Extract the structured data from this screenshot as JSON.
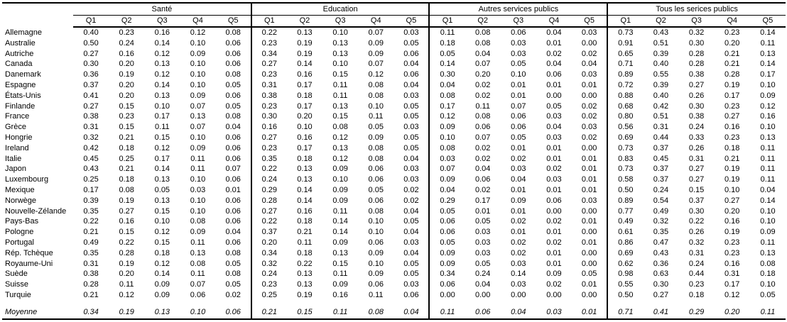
{
  "table": {
    "quarter_headers": [
      "Q1",
      "Q2",
      "Q3",
      "Q4",
      "Q5"
    ],
    "groups": [
      {
        "id": "sante",
        "label": "Santé"
      },
      {
        "id": "education",
        "label": "Education"
      },
      {
        "id": "autres",
        "label": "Autres services publics"
      },
      {
        "id": "tous",
        "label": "Tous les serices publics"
      }
    ],
    "rows": [
      {
        "label": "Allemagne",
        "values": [
          [
            "0.40",
            "0.23",
            "0.16",
            "0.12",
            "0.08"
          ],
          [
            "0.22",
            "0.13",
            "0.10",
            "0.07",
            "0.03"
          ],
          [
            "0.11",
            "0.08",
            "0.06",
            "0.04",
            "0.03"
          ],
          [
            "0.73",
            "0.43",
            "0.32",
            "0.23",
            "0.14"
          ]
        ]
      },
      {
        "label": "Australie",
        "values": [
          [
            "0.50",
            "0.24",
            "0.14",
            "0.10",
            "0.06"
          ],
          [
            "0.23",
            "0.19",
            "0.13",
            "0.09",
            "0.05"
          ],
          [
            "0.18",
            "0.08",
            "0.03",
            "0.01",
            "0.00"
          ],
          [
            "0.91",
            "0.51",
            "0.30",
            "0.20",
            "0.11"
          ]
        ]
      },
      {
        "label": "Autriche",
        "values": [
          [
            "0.27",
            "0.16",
            "0.12",
            "0.09",
            "0.06"
          ],
          [
            "0.34",
            "0.19",
            "0.13",
            "0.09",
            "0.06"
          ],
          [
            "0.05",
            "0.04",
            "0.03",
            "0.02",
            "0.02"
          ],
          [
            "0.65",
            "0.39",
            "0.28",
            "0.21",
            "0.13"
          ]
        ]
      },
      {
        "label": "Canada",
        "values": [
          [
            "0.30",
            "0.20",
            "0.13",
            "0.10",
            "0.06"
          ],
          [
            "0.27",
            "0.14",
            "0.10",
            "0.07",
            "0.04"
          ],
          [
            "0.14",
            "0.07",
            "0.05",
            "0.04",
            "0.04"
          ],
          [
            "0.71",
            "0.40",
            "0.28",
            "0.21",
            "0.14"
          ]
        ]
      },
      {
        "label": "Danemark",
        "values": [
          [
            "0.36",
            "0.19",
            "0.12",
            "0.10",
            "0.08"
          ],
          [
            "0.23",
            "0.16",
            "0.15",
            "0.12",
            "0.06"
          ],
          [
            "0.30",
            "0.20",
            "0.10",
            "0.06",
            "0.03"
          ],
          [
            "0.89",
            "0.55",
            "0.38",
            "0.28",
            "0.17"
          ]
        ]
      },
      {
        "label": "Espagne",
        "values": [
          [
            "0.37",
            "0.20",
            "0.14",
            "0.10",
            "0.05"
          ],
          [
            "0.31",
            "0.17",
            "0.11",
            "0.08",
            "0.04"
          ],
          [
            "0.04",
            "0.02",
            "0.01",
            "0.01",
            "0.01"
          ],
          [
            "0.72",
            "0.39",
            "0.27",
            "0.19",
            "0.10"
          ]
        ]
      },
      {
        "label": "États-Unis",
        "values": [
          [
            "0.41",
            "0.20",
            "0.13",
            "0.09",
            "0.06"
          ],
          [
            "0.38",
            "0.18",
            "0.11",
            "0.08",
            "0.03"
          ],
          [
            "0.08",
            "0.02",
            "0.01",
            "0.00",
            "0.00"
          ],
          [
            "0.88",
            "0.40",
            "0.26",
            "0.17",
            "0.09"
          ]
        ]
      },
      {
        "label": "Finlande",
        "values": [
          [
            "0.27",
            "0.15",
            "0.10",
            "0.07",
            "0.05"
          ],
          [
            "0.23",
            "0.17",
            "0.13",
            "0.10",
            "0.05"
          ],
          [
            "0.17",
            "0.11",
            "0.07",
            "0.05",
            "0.02"
          ],
          [
            "0.68",
            "0.42",
            "0.30",
            "0.23",
            "0.12"
          ]
        ]
      },
      {
        "label": "France",
        "values": [
          [
            "0.38",
            "0.23",
            "0.17",
            "0.13",
            "0.08"
          ],
          [
            "0.30",
            "0.20",
            "0.15",
            "0.11",
            "0.05"
          ],
          [
            "0.12",
            "0.08",
            "0.06",
            "0.03",
            "0.02"
          ],
          [
            "0.80",
            "0.51",
            "0.38",
            "0.27",
            "0.16"
          ]
        ]
      },
      {
        "label": "Grèce",
        "values": [
          [
            "0.31",
            "0.15",
            "0.11",
            "0.07",
            "0.04"
          ],
          [
            "0.16",
            "0.10",
            "0.08",
            "0.05",
            "0.03"
          ],
          [
            "0.09",
            "0.06",
            "0.06",
            "0.04",
            "0.03"
          ],
          [
            "0.56",
            "0.31",
            "0.24",
            "0.16",
            "0.10"
          ]
        ]
      },
      {
        "label": "Hongrie",
        "values": [
          [
            "0.32",
            "0.21",
            "0.15",
            "0.10",
            "0.06"
          ],
          [
            "0.27",
            "0.16",
            "0.12",
            "0.09",
            "0.05"
          ],
          [
            "0.10",
            "0.07",
            "0.05",
            "0.03",
            "0.02"
          ],
          [
            "0.69",
            "0.44",
            "0.33",
            "0.23",
            "0.13"
          ]
        ]
      },
      {
        "label": "Ireland",
        "values": [
          [
            "0.42",
            "0.18",
            "0.12",
            "0.09",
            "0.06"
          ],
          [
            "0.23",
            "0.17",
            "0.13",
            "0.08",
            "0.05"
          ],
          [
            "0.08",
            "0.02",
            "0.01",
            "0.01",
            "0.00"
          ],
          [
            "0.73",
            "0.37",
            "0.26",
            "0.18",
            "0.11"
          ]
        ]
      },
      {
        "label": "Italie",
        "values": [
          [
            "0.45",
            "0.25",
            "0.17",
            "0.11",
            "0.06"
          ],
          [
            "0.35",
            "0.18",
            "0.12",
            "0.08",
            "0.04"
          ],
          [
            "0.03",
            "0.02",
            "0.02",
            "0.01",
            "0.01"
          ],
          [
            "0.83",
            "0.45",
            "0.31",
            "0.21",
            "0.11"
          ]
        ]
      },
      {
        "label": "Japon",
        "values": [
          [
            "0.43",
            "0.21",
            "0.14",
            "0.11",
            "0.07"
          ],
          [
            "0.22",
            "0.13",
            "0.09",
            "0.06",
            "0.03"
          ],
          [
            "0.07",
            "0.04",
            "0.03",
            "0.02",
            "0.01"
          ],
          [
            "0.73",
            "0.37",
            "0.27",
            "0.19",
            "0.11"
          ]
        ]
      },
      {
        "label": "Luxembourg",
        "values": [
          [
            "0.25",
            "0.18",
            "0.13",
            "0.10",
            "0.06"
          ],
          [
            "0.24",
            "0.13",
            "0.10",
            "0.06",
            "0.03"
          ],
          [
            "0.09",
            "0.06",
            "0.04",
            "0.03",
            "0.01"
          ],
          [
            "0.58",
            "0.37",
            "0.27",
            "0.19",
            "0.11"
          ]
        ]
      },
      {
        "label": "Mexique",
        "values": [
          [
            "0.17",
            "0.08",
            "0.05",
            "0.03",
            "0.01"
          ],
          [
            "0.29",
            "0.14",
            "0.09",
            "0.05",
            "0.02"
          ],
          [
            "0.04",
            "0.02",
            "0.01",
            "0.01",
            "0.01"
          ],
          [
            "0.50",
            "0.24",
            "0.15",
            "0.10",
            "0.04"
          ]
        ]
      },
      {
        "label": "Norwège",
        "values": [
          [
            "0.39",
            "0.19",
            "0.13",
            "0.10",
            "0.06"
          ],
          [
            "0.28",
            "0.14",
            "0.09",
            "0.06",
            "0.02"
          ],
          [
            "0.29",
            "0.17",
            "0.09",
            "0.06",
            "0.03"
          ],
          [
            "0.89",
            "0.54",
            "0.37",
            "0.27",
            "0.14"
          ]
        ]
      },
      {
        "label": "Nouvelle-Zélande",
        "values": [
          [
            "0.35",
            "0.27",
            "0.15",
            "0.10",
            "0.06"
          ],
          [
            "0.27",
            "0.16",
            "0.11",
            "0.08",
            "0.04"
          ],
          [
            "0.05",
            "0.01",
            "0.01",
            "0.00",
            "0.00"
          ],
          [
            "0.77",
            "0.49",
            "0.30",
            "0.20",
            "0.10"
          ]
        ]
      },
      {
        "label": "Pays-Bas",
        "values": [
          [
            "0.22",
            "0.16",
            "0.10",
            "0.08",
            "0.06"
          ],
          [
            "0.22",
            "0.18",
            "0.14",
            "0.10",
            "0.05"
          ],
          [
            "0.06",
            "0.05",
            "0.02",
            "0.02",
            "0.01"
          ],
          [
            "0.49",
            "0.32",
            "0.22",
            "0.16",
            "0.10"
          ]
        ]
      },
      {
        "label": "Pologne",
        "values": [
          [
            "0.21",
            "0.15",
            "0.12",
            "0.09",
            "0.04"
          ],
          [
            "0.37",
            "0.21",
            "0.14",
            "0.10",
            "0.04"
          ],
          [
            "0.06",
            "0.03",
            "0.01",
            "0.01",
            "0.00"
          ],
          [
            "0.61",
            "0.35",
            "0.26",
            "0.19",
            "0.09"
          ]
        ]
      },
      {
        "label": "Portugal",
        "values": [
          [
            "0.49",
            "0.22",
            "0.15",
            "0.11",
            "0.06"
          ],
          [
            "0.20",
            "0.11",
            "0.09",
            "0.06",
            "0.03"
          ],
          [
            "0.05",
            "0.03",
            "0.02",
            "0.02",
            "0.01"
          ],
          [
            "0.86",
            "0.47",
            "0.32",
            "0.23",
            "0.11"
          ]
        ]
      },
      {
        "label": "Rép. Tchèque",
        "values": [
          [
            "0.35",
            "0.28",
            "0.18",
            "0.13",
            "0.08"
          ],
          [
            "0.34",
            "0.18",
            "0.13",
            "0.09",
            "0.04"
          ],
          [
            "0.09",
            "0.03",
            "0.02",
            "0.01",
            "0.00"
          ],
          [
            "0.69",
            "0.43",
            "0.31",
            "0.23",
            "0.13"
          ]
        ]
      },
      {
        "label": "Royaume-Uni",
        "values": [
          [
            "0.31",
            "0.19",
            "0.12",
            "0.08",
            "0.05"
          ],
          [
            "0.32",
            "0.22",
            "0.15",
            "0.10",
            "0.05"
          ],
          [
            "0.09",
            "0.05",
            "0.03",
            "0.01",
            "0.00"
          ],
          [
            "0.62",
            "0.36",
            "0.24",
            "0.16",
            "0.08"
          ]
        ]
      },
      {
        "label": "Suède",
        "values": [
          [
            "0.38",
            "0.20",
            "0.14",
            "0.11",
            "0.08"
          ],
          [
            "0.24",
            "0.13",
            "0.11",
            "0.09",
            "0.05"
          ],
          [
            "0.34",
            "0.24",
            "0.14",
            "0.09",
            "0.05"
          ],
          [
            "0.98",
            "0.63",
            "0.44",
            "0.31",
            "0.18"
          ]
        ]
      },
      {
        "label": "Suisse",
        "values": [
          [
            "0.28",
            "0.11",
            "0.09",
            "0.07",
            "0.05"
          ],
          [
            "0.23",
            "0.13",
            "0.09",
            "0.06",
            "0.03"
          ],
          [
            "0.06",
            "0.04",
            "0.03",
            "0.02",
            "0.01"
          ],
          [
            "0.55",
            "0.30",
            "0.23",
            "0.17",
            "0.10"
          ]
        ]
      },
      {
        "label": "Turquie",
        "values": [
          [
            "0.21",
            "0.12",
            "0.09",
            "0.06",
            "0.02"
          ],
          [
            "0.25",
            "0.19",
            "0.16",
            "0.11",
            "0.06"
          ],
          [
            "0.00",
            "0.00",
            "0.00",
            "0.00",
            "0.00"
          ],
          [
            "0.50",
            "0.27",
            "0.18",
            "0.12",
            "0.05"
          ]
        ]
      }
    ],
    "summary_row": {
      "label": "Moyenne",
      "values": [
        [
          "0.34",
          "0.19",
          "0.13",
          "0.10",
          "0.06"
        ],
        [
          "0.21",
          "0.15",
          "0.11",
          "0.08",
          "0.04"
        ],
        [
          "0.11",
          "0.06",
          "0.04",
          "0.03",
          "0.01"
        ],
        [
          "0.71",
          "0.41",
          "0.29",
          "0.20",
          "0.11"
        ]
      ]
    }
  },
  "colors": {
    "text": "#000000",
    "border": "#000000",
    "background": "#ffffff"
  }
}
